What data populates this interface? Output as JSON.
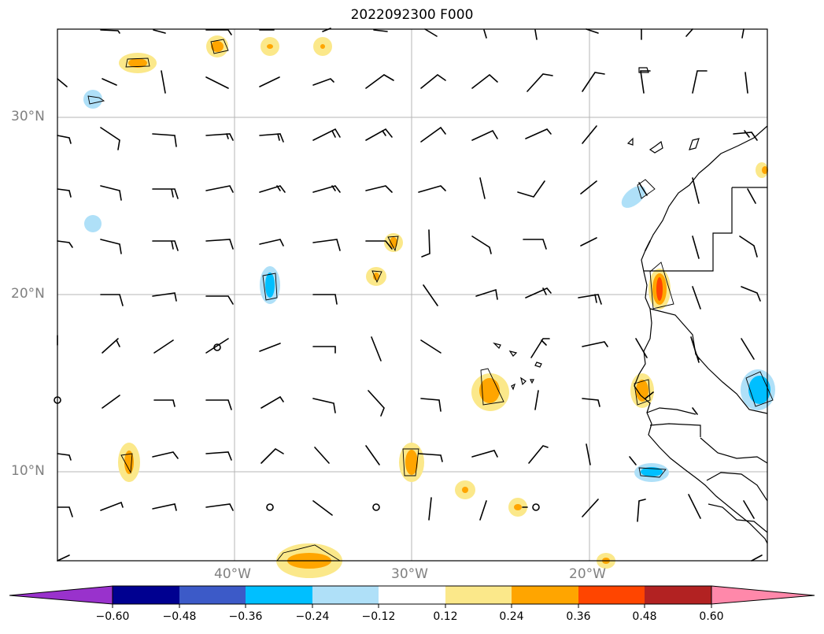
{
  "title": "2022092300 F000",
  "lat_labels": [
    "30°N",
    "20°N",
    "10°N"
  ],
  "lon_labels": [
    "40°W",
    "30°W",
    "20°W"
  ],
  "colorbar": {
    "ticks": [
      "−0.60",
      "−0.48",
      "−0.36",
      "−0.24",
      "−0.12",
      "0.12",
      "0.24",
      "0.36",
      "0.48",
      "0.60"
    ],
    "colors": {
      "under": "#9932cc",
      "bins": [
        "#000090",
        "#3c5ac8",
        "#00bfff",
        "#afe0f8",
        "#ffffff",
        "#fbe88a",
        "#ffa500",
        "#ff4500",
        "#b22222"
      ],
      "over": "#ff88aa"
    }
  }
}
